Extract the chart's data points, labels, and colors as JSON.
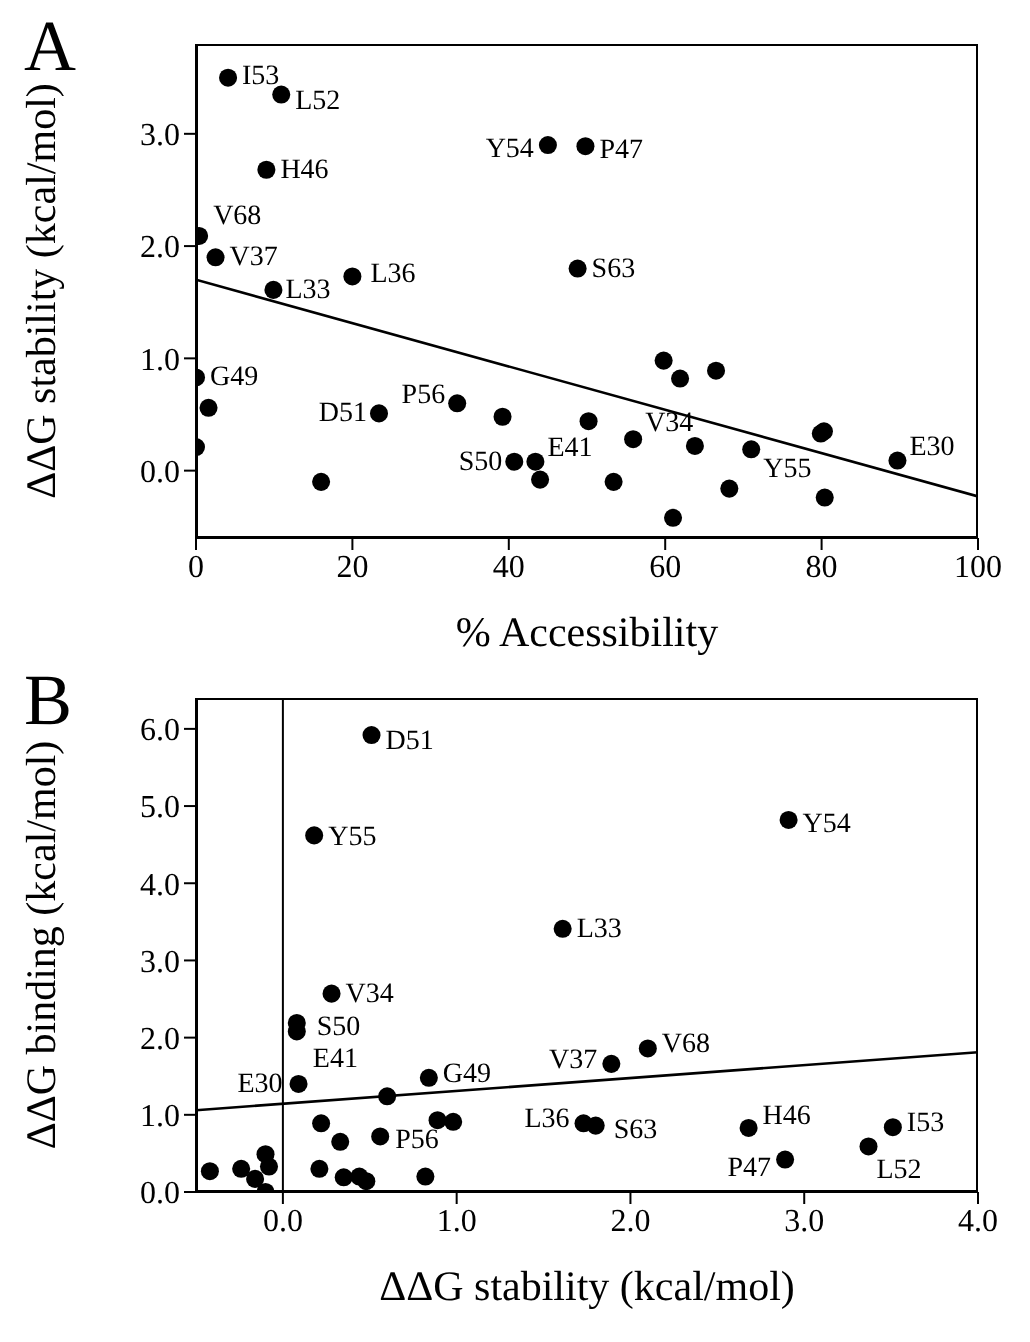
{
  "chart_data": [
    {
      "type": "scatter",
      "title": "A",
      "xlabel": "% Accessibility",
      "ylabel": "ΔΔG stability (kcal/mol)",
      "xlim": [
        0,
        100
      ],
      "ylim": [
        -0.6,
        3.8
      ],
      "xticks": [
        0,
        20,
        40,
        60,
        80,
        100
      ],
      "yticks": [
        {
          "value": 0,
          "label": "0.0"
        },
        {
          "value": 1,
          "label": "1.0"
        },
        {
          "value": 2,
          "label": "2.0"
        },
        {
          "value": 3,
          "label": "3.0"
        }
      ],
      "grid": false,
      "legend": false,
      "marker": "circle",
      "series": [
        {
          "color": "#000000",
          "x": [
            4.1,
            10.9,
            45,
            49.8,
            9.0,
            0.4,
            2.5,
            20.0,
            48.8,
            9.9,
            59.8,
            61.9,
            66.5,
            0,
            1.6,
            33.4,
            23.4,
            39.2,
            50.2,
            55.9,
            63.8,
            71.0,
            79.9,
            80.3,
            89.7,
            0,
            40.7,
            43.4,
            44.0,
            16.0,
            53.4,
            68.2,
            80.4,
            61.0
          ],
          "values": [
            3.5,
            3.35,
            2.9,
            2.89,
            2.68,
            2.09,
            1.9,
            1.73,
            1.8,
            1.61,
            0.98,
            0.82,
            0.89,
            0.83,
            0.56,
            0.6,
            0.51,
            0.48,
            0.44,
            0.28,
            0.22,
            0.19,
            0.33,
            0.35,
            0.09,
            0.21,
            0.08,
            0.08,
            -0.08,
            -0.1,
            -0.1,
            -0.16,
            -0.24,
            -0.42
          ]
        },
        {
          "type": "line",
          "marker": "none",
          "line_style": "solid",
          "color": "#000000",
          "x": [
            0,
            100
          ],
          "values": [
            1.7,
            -0.23
          ]
        }
      ],
      "annotations": [
        {
          "text": "I53",
          "x": 4.1,
          "y": 3.5
        },
        {
          "text": "L52",
          "x": 10.9,
          "y": 3.35
        },
        {
          "text": "Y54",
          "x": 45,
          "y": 2.9
        },
        {
          "text": "P47",
          "x": 49.8,
          "y": 2.89
        },
        {
          "text": "H46",
          "x": 9.0,
          "y": 2.68
        },
        {
          "text": "V68",
          "x": 0.4,
          "y": 2.09
        },
        {
          "text": "V37",
          "x": 2.5,
          "y": 1.9
        },
        {
          "text": "L36",
          "x": 20.0,
          "y": 1.73
        },
        {
          "text": "S63",
          "x": 48.8,
          "y": 1.8
        },
        {
          "text": "L33",
          "x": 9.9,
          "y": 1.61
        },
        {
          "text": "G49",
          "x": 0,
          "y": 0.83
        },
        {
          "text": "P56",
          "x": 33.4,
          "y": 0.6
        },
        {
          "text": "D51",
          "x": 23.4,
          "y": 0.51
        },
        {
          "text": "V34",
          "x": 55.9,
          "y": 0.28
        },
        {
          "text": "Y55",
          "x": 71.0,
          "y": 0.19
        },
        {
          "text": "E30",
          "x": 89.7,
          "y": 0.09
        },
        {
          "text": "S50",
          "x": 40.7,
          "y": 0.08
        },
        {
          "text": "E41",
          "x": 43.4,
          "y": 0.08
        }
      ]
    },
    {
      "type": "scatter",
      "title": "B",
      "xlabel": "ΔΔG stability (kcal/mol)",
      "ylabel": "ΔΔG binding  (kcal/mol)",
      "xlim": [
        -0.5,
        4.0
      ],
      "ylim": [
        0,
        6.4
      ],
      "xticks": [
        {
          "value": 0,
          "label": "0.0"
        },
        {
          "value": 1,
          "label": "1.0"
        },
        {
          "value": 2,
          "label": "2.0"
        },
        {
          "value": 3,
          "label": "3.0"
        },
        {
          "value": 4,
          "label": "4.0"
        }
      ],
      "yticks": [
        {
          "value": 0,
          "label": "0.0"
        },
        {
          "value": 1,
          "label": "1.0"
        },
        {
          "value": 2,
          "label": "2.0"
        },
        {
          "value": 3,
          "label": "3.0"
        },
        {
          "value": 4,
          "label": "4.0"
        },
        {
          "value": 5,
          "label": "5.0"
        },
        {
          "value": 6,
          "label": "6.0"
        }
      ],
      "grid": false,
      "legend": false,
      "marker": "circle",
      "ref_lines": [
        {
          "axis": "x",
          "value": 0,
          "color": "#000000"
        }
      ],
      "series": [
        {
          "color": "#000000",
          "x": [
            0.51,
            0.18,
            2.91,
            1.61,
            0.28,
            0.08,
            0.08,
            2.1,
            1.89,
            0.84,
            0.09,
            0.6,
            0.89,
            0.98,
            0.22,
            1.73,
            1.8,
            2.68,
            3.51,
            0.56,
            0.33,
            3.37,
            2.89,
            -0.1,
            -0.08,
            -0.42,
            -0.24,
            -0.16,
            0.21,
            0.35,
            0.44,
            0.48,
            0.82,
            -0.1
          ],
          "values": [
            5.92,
            4.62,
            4.82,
            3.41,
            2.57,
            2.19,
            2.08,
            1.86,
            1.66,
            1.48,
            1.4,
            1.24,
            0.93,
            0.91,
            0.89,
            0.89,
            0.86,
            0.83,
            0.84,
            0.72,
            0.65,
            0.59,
            0.42,
            0.49,
            0.33,
            0.27,
            0.3,
            0.17,
            0.3,
            0.19,
            0.2,
            0.14,
            0.2,
            0.0
          ]
        },
        {
          "type": "line",
          "marker": "none",
          "line_style": "solid",
          "color": "#000000",
          "x": [
            -0.5,
            4.0
          ],
          "values": [
            1.06,
            1.81
          ]
        }
      ],
      "annotations": [
        {
          "text": "D51",
          "x": 0.51,
          "y": 5.92
        },
        {
          "text": "Y55",
          "x": 0.18,
          "y": 4.62
        },
        {
          "text": "Y54",
          "x": 2.91,
          "y": 4.82
        },
        {
          "text": "L33",
          "x": 1.61,
          "y": 3.41
        },
        {
          "text": "V34",
          "x": 0.28,
          "y": 2.57
        },
        {
          "text": "S50",
          "x": 0.08,
          "y": 2.19
        },
        {
          "text": "E41",
          "x": 0.08,
          "y": 2.08
        },
        {
          "text": "E30",
          "x": 0.09,
          "y": 1.4
        },
        {
          "text": "G49",
          "x": 0.84,
          "y": 1.48
        },
        {
          "text": "V37",
          "x": 1.89,
          "y": 1.66
        },
        {
          "text": "V68",
          "x": 2.1,
          "y": 1.86
        },
        {
          "text": "P56",
          "x": 0.6,
          "y": 1.24
        },
        {
          "text": "L36",
          "x": 1.73,
          "y": 0.89
        },
        {
          "text": "S63",
          "x": 1.8,
          "y": 0.86
        },
        {
          "text": "H46",
          "x": 2.68,
          "y": 0.83
        },
        {
          "text": "I53",
          "x": 3.51,
          "y": 0.84
        },
        {
          "text": "P47",
          "x": 2.89,
          "y": 0.42
        },
        {
          "text": "L52",
          "x": 3.37,
          "y": 0.59
        }
      ]
    }
  ]
}
